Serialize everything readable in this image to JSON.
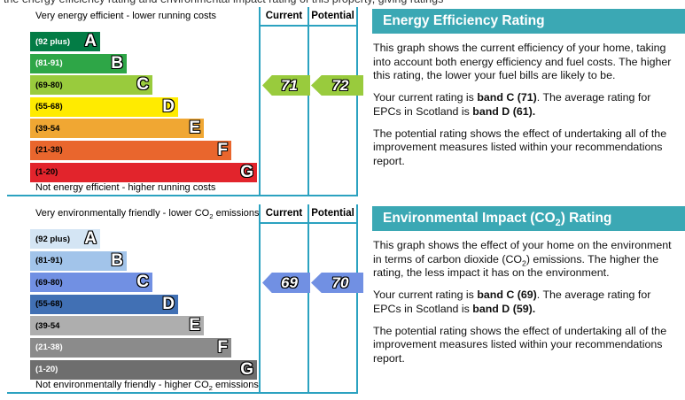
{
  "page": {
    "cropped_top_text": "the energy efficiency rating and environmental impact rating of this property, giving ratings"
  },
  "energy": {
    "panel_title": "Energy Efficiency Rating",
    "top_caption": "Very energy efficient - lower running costs",
    "bottom_caption": "Not energy efficient - higher running costs",
    "col_current": "Current",
    "col_potential": "Potential",
    "bands": [
      {
        "range": "(92 plus)",
        "letter": "A"
      },
      {
        "range": "(81-91)",
        "letter": "B"
      },
      {
        "range": "(69-80)",
        "letter": "C"
      },
      {
        "range": "(55-68)",
        "letter": "D"
      },
      {
        "range": "(39-54",
        "letter": "E"
      },
      {
        "range": "(21-38)",
        "letter": "F"
      },
      {
        "range": "(1-20)",
        "letter": "G"
      }
    ],
    "current_value": "71",
    "potential_value": "72",
    "p1": "This graph shows the current efficiency of your home, taking into account both energy efficiency and fuel costs. The higher this rating, the lower your fuel bills are likely to be.",
    "p2_rich": [
      {
        "text": "Your current rating is "
      },
      {
        "text": "band C (71)",
        "style": "bold"
      },
      {
        "text": ". The average rating for EPCs in Scotland is "
      },
      {
        "text": "band D (61).",
        "style": "bold"
      }
    ],
    "p3": "The potential rating shows the effect of undertaking all of the improvement measures listed within your recommendations report."
  },
  "environment": {
    "panel_title_rich": [
      {
        "text": "Environmental Impact (CO"
      },
      {
        "text": "2",
        "style": "sub"
      },
      {
        "text": ") Rating"
      }
    ],
    "top_caption_rich": [
      {
        "text": "Very environmentally friendly - lower CO"
      },
      {
        "text": "2",
        "style": "sub"
      },
      {
        "text": " emissions"
      }
    ],
    "bottom_caption_rich": [
      {
        "text": "Not environmentally friendly - higher CO"
      },
      {
        "text": "2",
        "style": "sub"
      },
      {
        "text": " emissions"
      }
    ],
    "col_current": "Current",
    "col_potential": "Potential",
    "bands": [
      {
        "range": "(92 plus)",
        "letter": "A"
      },
      {
        "range": "(81-91)",
        "letter": "B"
      },
      {
        "range": "(69-80)",
        "letter": "C"
      },
      {
        "range": "(55-68)",
        "letter": "D"
      },
      {
        "range": "(39-54",
        "letter": "E"
      },
      {
        "range": "(21-38)",
        "letter": "F"
      },
      {
        "range": "(1-20)",
        "letter": "G"
      }
    ],
    "current_value": "69",
    "potential_value": "70",
    "p1_rich": [
      {
        "text": "This graph shows the effect of your home on the environment in terms of carbon dioxide (CO"
      },
      {
        "text": "2",
        "style": "sub"
      },
      {
        "text": ") emissions. The higher the rating, the less impact it has on the environment."
      }
    ],
    "p2_rich": [
      {
        "text": "Your current rating is "
      },
      {
        "text": "band C (69)",
        "style": "bold"
      },
      {
        "text": ". The average rating for EPCs in Scotland is "
      },
      {
        "text": "band D (59).",
        "style": "bold"
      }
    ],
    "p3": "The potential rating shows the effect of undertaking all of the improvement measures listed within your recommendations report."
  },
  "colors": {
    "teal_header": "#3BA8B4",
    "table_line": "#2BA2C0",
    "energy_bands": [
      "#037C45",
      "#2EA647",
      "#99CB3D",
      "#FFEB00",
      "#F0A733",
      "#E9662D",
      "#E2242C"
    ],
    "env_bands": [
      "#D4E5F4",
      "#A2C4EA",
      "#7190E3",
      "#4170B4",
      "#AEAEAE",
      "#8B8B8B",
      "#6E6E6E"
    ],
    "energy_arrow": "#99CB3D",
    "env_arrow": "#7190E3"
  },
  "chart_data": [
    {
      "type": "bar",
      "title": "Energy Efficiency Rating",
      "categories": [
        "A (92 plus)",
        "B (81-91)",
        "C (69-80)",
        "D (55-68)",
        "E (39-54)",
        "F (21-38)",
        "G (1-20)"
      ],
      "values": [
        92,
        81,
        69,
        55,
        39,
        21,
        1
      ],
      "current": {
        "value": 71,
        "band": "C"
      },
      "potential": {
        "value": 72,
        "band": "C"
      },
      "average_scotland": {
        "value": 61,
        "band": "D"
      },
      "xlabel": "",
      "ylabel": "",
      "legend_position": "none"
    },
    {
      "type": "bar",
      "title": "Environmental Impact (CO2) Rating",
      "categories": [
        "A (92 plus)",
        "B (81-91)",
        "C (69-80)",
        "D (55-68)",
        "E (39-54)",
        "F (21-38)",
        "G (1-20)"
      ],
      "values": [
        92,
        81,
        69,
        55,
        39,
        21,
        1
      ],
      "current": {
        "value": 69,
        "band": "C"
      },
      "potential": {
        "value": 70,
        "band": "C"
      },
      "average_scotland": {
        "value": 59,
        "band": "D"
      },
      "xlabel": "",
      "ylabel": "",
      "legend_position": "none"
    }
  ]
}
